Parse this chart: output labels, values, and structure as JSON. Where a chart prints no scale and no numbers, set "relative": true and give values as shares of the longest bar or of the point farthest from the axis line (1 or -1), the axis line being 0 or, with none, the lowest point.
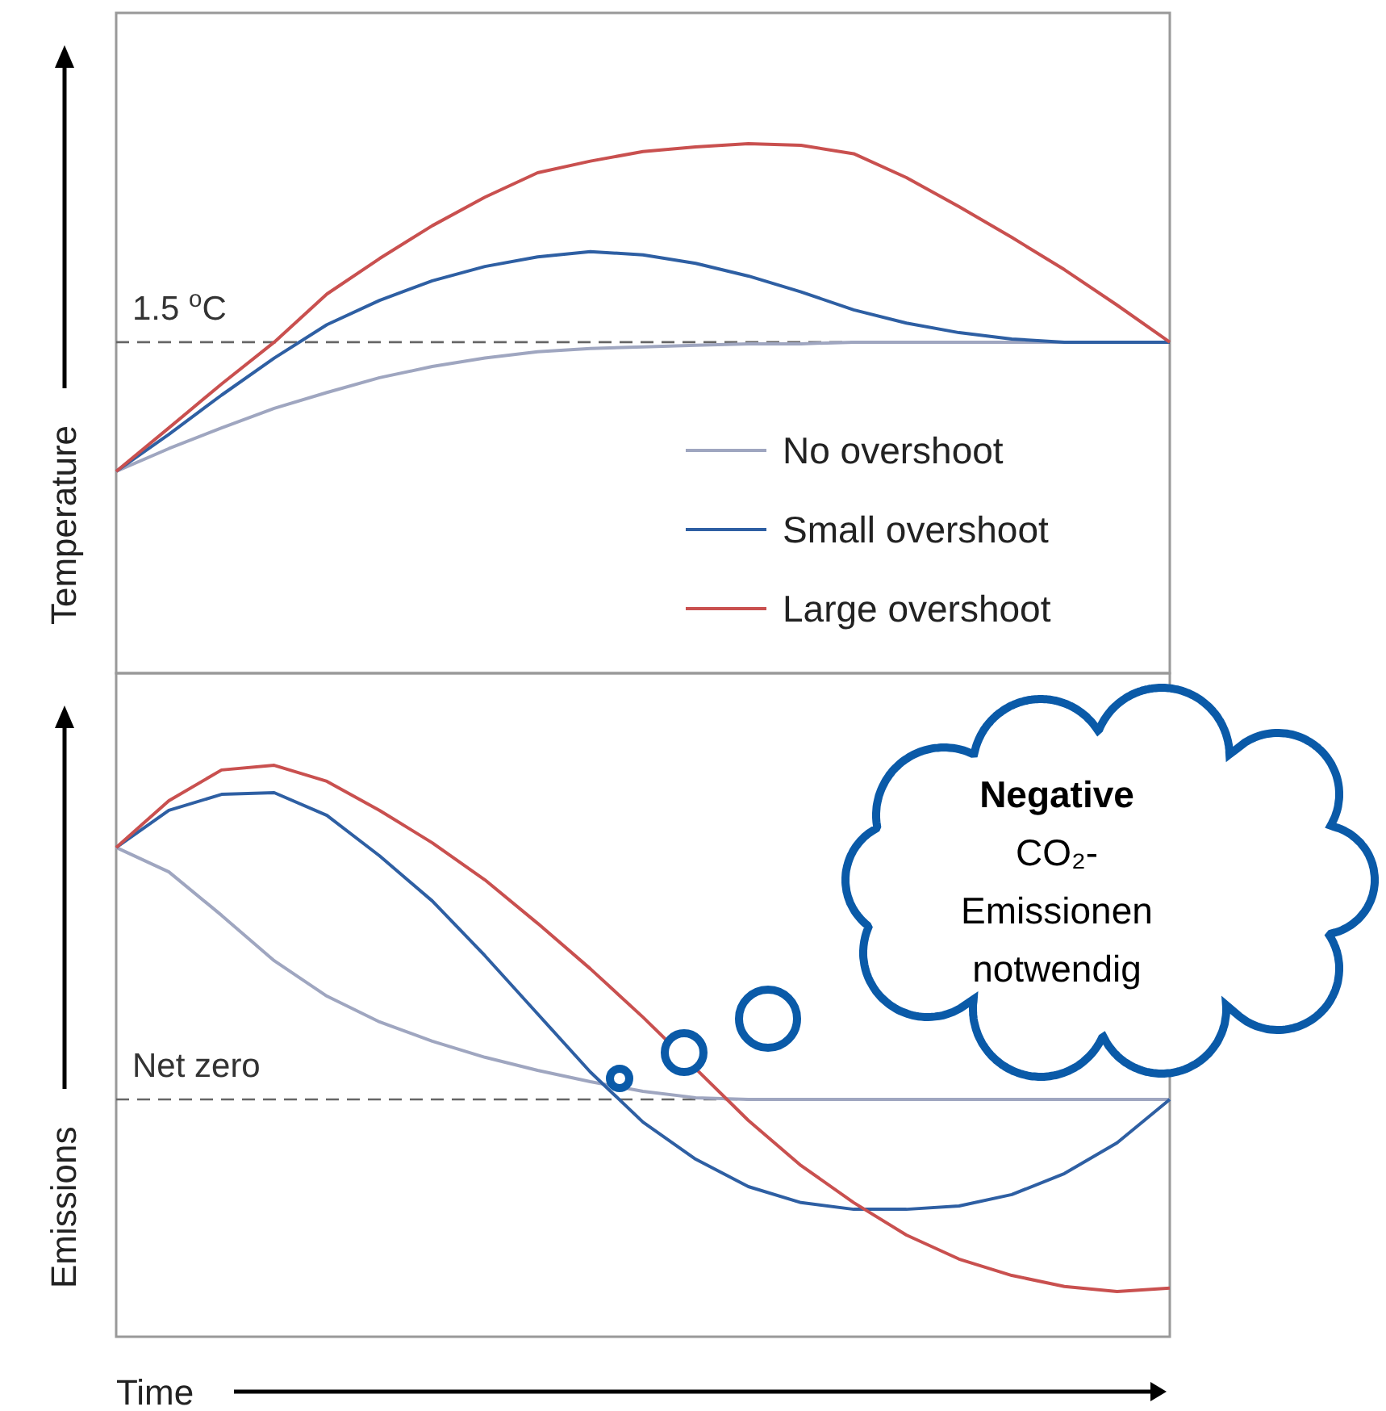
{
  "chart_data": [
    {
      "type": "line",
      "relative": true,
      "ylabel": "Temperature",
      "legend": "bottom right",
      "categories": [
        null,
        null,
        null,
        null,
        null,
        null,
        null,
        null,
        null,
        null,
        null,
        null,
        null,
        null,
        null,
        null,
        null,
        null,
        null,
        null,
        null
      ],
      "series": [
        {
          "name": "No overshoot",
          "color": "#9fa6c0",
          "values": [
            0.381,
            0.424,
            0.463,
            0.5,
            0.53,
            0.558,
            0.579,
            0.595,
            0.607,
            0.613,
            0.616,
            0.619,
            0.622,
            0.622,
            0.625,
            0.625,
            0.625,
            0.625,
            0.625,
            0.625,
            0.625
          ]
        },
        {
          "name": "Small overshoot",
          "color": "#2e5fa3",
          "values": [
            0.381,
            0.451,
            0.525,
            0.595,
            0.658,
            0.704,
            0.741,
            0.768,
            0.786,
            0.796,
            0.79,
            0.774,
            0.75,
            0.72,
            0.686,
            0.661,
            0.643,
            0.631,
            0.625,
            0.625,
            0.625
          ]
        },
        {
          "name": "Large overshoot",
          "color": "#c9504f",
          "values": [
            0.381,
            0.463,
            0.546,
            0.625,
            0.716,
            0.783,
            0.845,
            0.899,
            0.945,
            0.967,
            0.985,
            0.994,
            1,
            0.997,
            0.981,
            0.936,
            0.881,
            0.823,
            0.762,
            0.695,
            0.625
          ]
        }
      ],
      "ref_lines": [
        {
          "axis": "y",
          "value": 0.625,
          "label": "1.5 $^{o}$C",
          "line_style": "dashed"
        }
      ]
    },
    {
      "type": "line",
      "relative": true,
      "ylabel": "Emissions",
      "xlabel": "Time",
      "categories": [
        null,
        null,
        null,
        null,
        null,
        null,
        null,
        null,
        null,
        null,
        null,
        null,
        null,
        null,
        null,
        null,
        null,
        null,
        null,
        null,
        null
      ],
      "series": [
        {
          "color": "#9fa6c0",
          "values": [
            0.754,
            0.681,
            0.551,
            0.415,
            0.309,
            0.232,
            0.174,
            0.126,
            0.087,
            0.053,
            0.024,
            0.005,
            0,
            0,
            0,
            0,
            0,
            0,
            0,
            0,
            0
          ]
        },
        {
          "color": "#2e5fa3",
          "values": [
            0.754,
            0.865,
            0.913,
            0.918,
            0.85,
            0.729,
            0.594,
            0.43,
            0.256,
            0.082,
            -0.068,
            -0.179,
            -0.261,
            -0.309,
            -0.329,
            -0.329,
            -0.319,
            -0.285,
            -0.222,
            -0.13,
            0
          ]
        },
        {
          "color": "#c9504f",
          "values": [
            0.754,
            0.894,
            0.986,
            1,
            0.952,
            0.865,
            0.768,
            0.657,
            0.527,
            0.391,
            0.246,
            0.092,
            -0.063,
            -0.198,
            -0.309,
            -0.406,
            -0.478,
            -0.527,
            -0.56,
            -0.575,
            -0.565
          ]
        }
      ],
      "ref_lines": [
        {
          "axis": "y",
          "value": 0,
          "label": "Net zero",
          "line_style": "dashed"
        }
      ],
      "annotations": [
        "Negative CO₂-Emissionen notwendig"
      ]
    }
  ]
}
